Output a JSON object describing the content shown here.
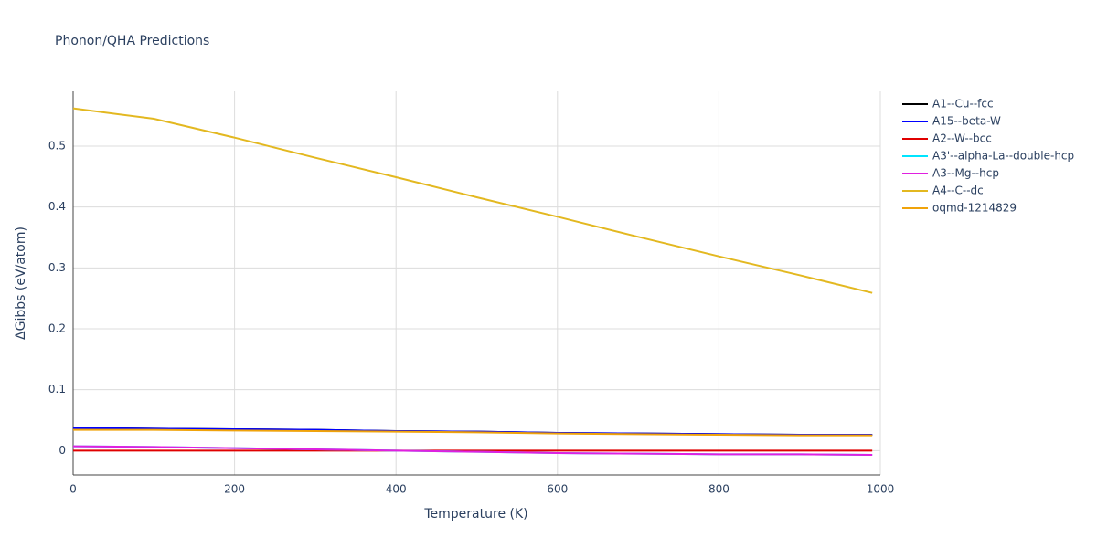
{
  "chart_data": {
    "type": "line",
    "title": "Phonon/QHA Predictions",
    "x_label": "Temperature (K)",
    "y_label": "ΔGibbs (eV/atom)",
    "x": [
      0,
      100,
      200,
      300,
      400,
      500,
      600,
      700,
      800,
      900,
      990
    ],
    "xlim": [
      0,
      1000
    ],
    "xticks": [
      0,
      200,
      400,
      600,
      800,
      1000
    ],
    "ylim": [
      -0.04,
      0.59
    ],
    "yticks": [
      0,
      0.1,
      0.2,
      0.3,
      0.4,
      0.5
    ],
    "grid": true,
    "legend": "right",
    "series": [
      {
        "name": "A1--Cu--fcc",
        "color": "#000000",
        "values": [
          0.037,
          0.036,
          0.035,
          0.034,
          0.032,
          0.031,
          0.029,
          0.028,
          0.027,
          0.026,
          0.026
        ]
      },
      {
        "name": "A15--beta-W",
        "color": "#0000ff",
        "values": [
          0.037,
          0.036,
          0.035,
          0.034,
          0.032,
          0.031,
          0.029,
          0.028,
          0.027,
          0.026,
          0.026
        ]
      },
      {
        "name": "A2--W--bcc",
        "color": "#e00000",
        "values": [
          0,
          0,
          0,
          0,
          0,
          0,
          0,
          0,
          0,
          0,
          0
        ]
      },
      {
        "name": "A3'--alpha-La--double-hcp",
        "color": "#00e5ff",
        "values": [
          0.007,
          0.006,
          0.004,
          0.002,
          0.0,
          -0.002,
          -0.004,
          -0.005,
          -0.006,
          -0.006,
          -0.007
        ]
      },
      {
        "name": "A3--Mg--hcp",
        "color": "#e020e0",
        "values": [
          0.007,
          0.006,
          0.004,
          0.002,
          0.0,
          -0.002,
          -0.004,
          -0.005,
          -0.006,
          -0.006,
          -0.007
        ]
      },
      {
        "name": "A4--C--dc",
        "color": "#e3b820",
        "values": [
          0.562,
          0.545,
          0.514,
          0.481,
          0.449,
          0.416,
          0.384,
          0.351,
          0.319,
          0.288,
          0.259
        ]
      },
      {
        "name": "oqmd-1214829",
        "color": "#f0a30a",
        "values": [
          0.034,
          0.034,
          0.033,
          0.032,
          0.031,
          0.03,
          0.028,
          0.027,
          0.026,
          0.025,
          0.025
        ]
      }
    ]
  }
}
